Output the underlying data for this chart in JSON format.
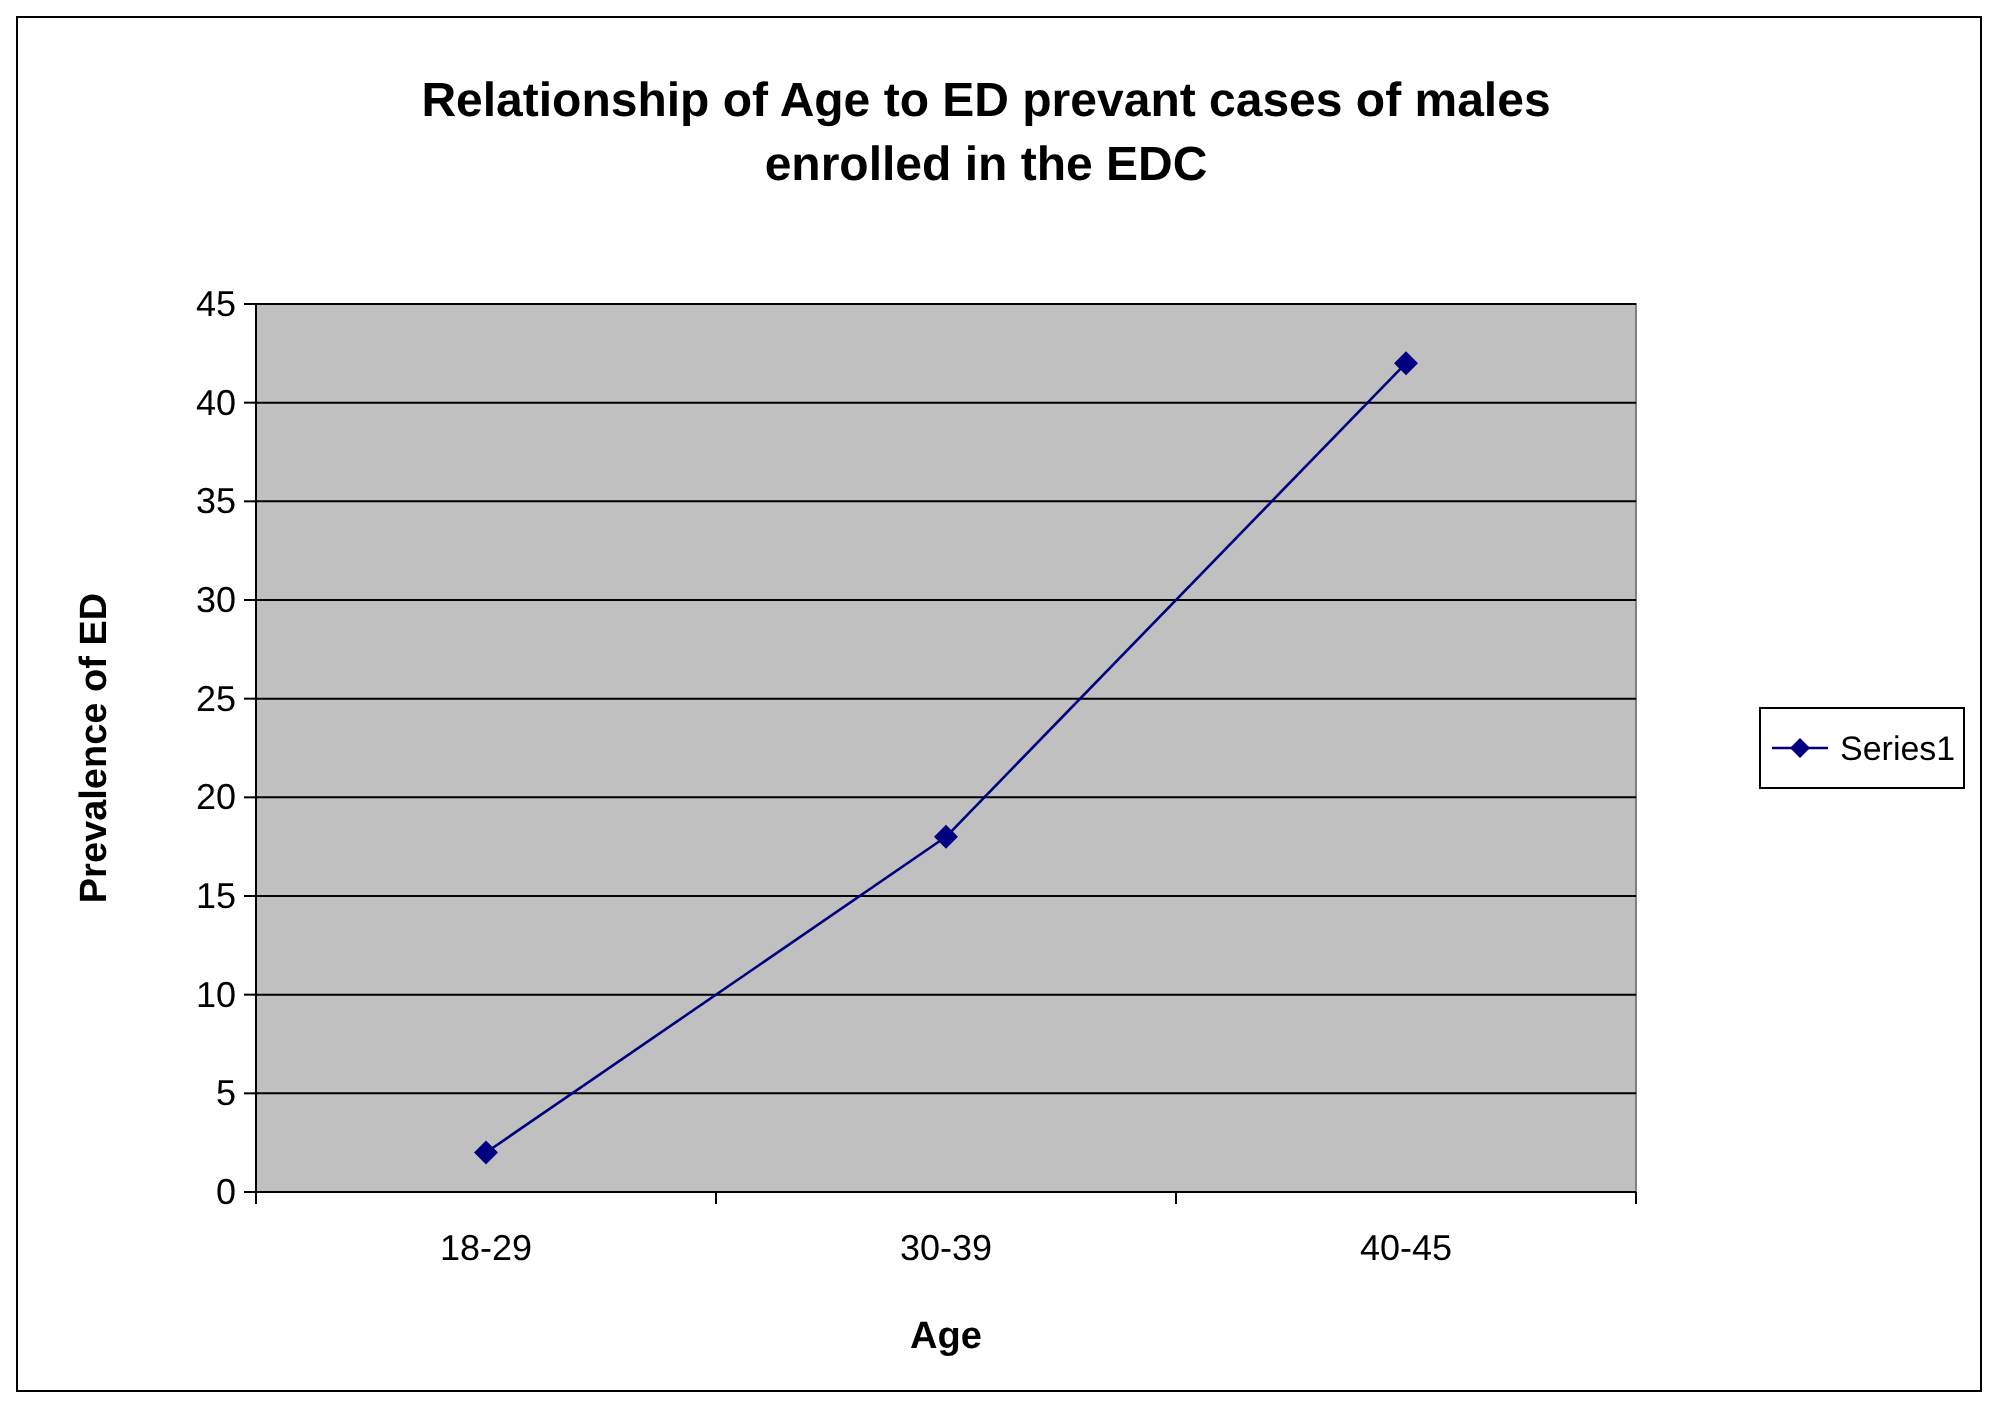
{
  "chart_data": {
    "type": "line",
    "title": "Relationship of Age to ED prevant cases of males enrolled in the EDC",
    "xlabel": "Age",
    "ylabel": "Prevalence of ED",
    "categories": [
      "18-29",
      "30-39",
      "40-45"
    ],
    "series": [
      {
        "name": "Series1",
        "color": "#000080",
        "values": [
          2,
          18,
          42
        ]
      }
    ],
    "ylim": [
      0,
      45
    ],
    "yticks": [
      0,
      5,
      10,
      15,
      20,
      25,
      30,
      35,
      40,
      45
    ],
    "grid": "y",
    "legend": "right",
    "marker": "diamond",
    "line_style": "solid"
  }
}
